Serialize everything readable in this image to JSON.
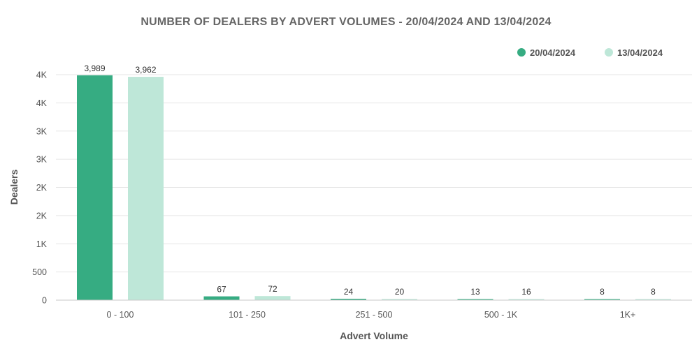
{
  "chart_data": {
    "type": "bar",
    "title": "NUMBER OF DEALERS BY ADVERT VOLUMES - 20/04/2024 AND 13/04/2024",
    "xlabel": "Advert Volume",
    "ylabel": "Dealers",
    "categories": [
      "0 - 100",
      "101 - 250",
      "251 - 500",
      "500 - 1K",
      "1K+"
    ],
    "series": [
      {
        "name": "20/04/2024",
        "values": [
          3989,
          67,
          24,
          13,
          8
        ],
        "labels": [
          "3,989",
          "67",
          "24",
          "13",
          "8"
        ],
        "color": "#36ac82"
      },
      {
        "name": "13/04/2024",
        "values": [
          3962,
          72,
          20,
          16,
          8
        ],
        "labels": [
          "3,962",
          "72",
          "20",
          "16",
          "8"
        ],
        "color": "#bee7d8"
      }
    ],
    "yticks": [
      0,
      500,
      1000,
      1500,
      2000,
      2500,
      3000,
      3500,
      4000
    ],
    "ytick_labels": [
      "0",
      "500",
      "1K",
      "2K",
      "2K",
      "3K",
      "3K",
      "4K",
      "4K"
    ],
    "ylim": [
      0,
      4000
    ],
    "grid": true,
    "legend_position": "top-right"
  }
}
